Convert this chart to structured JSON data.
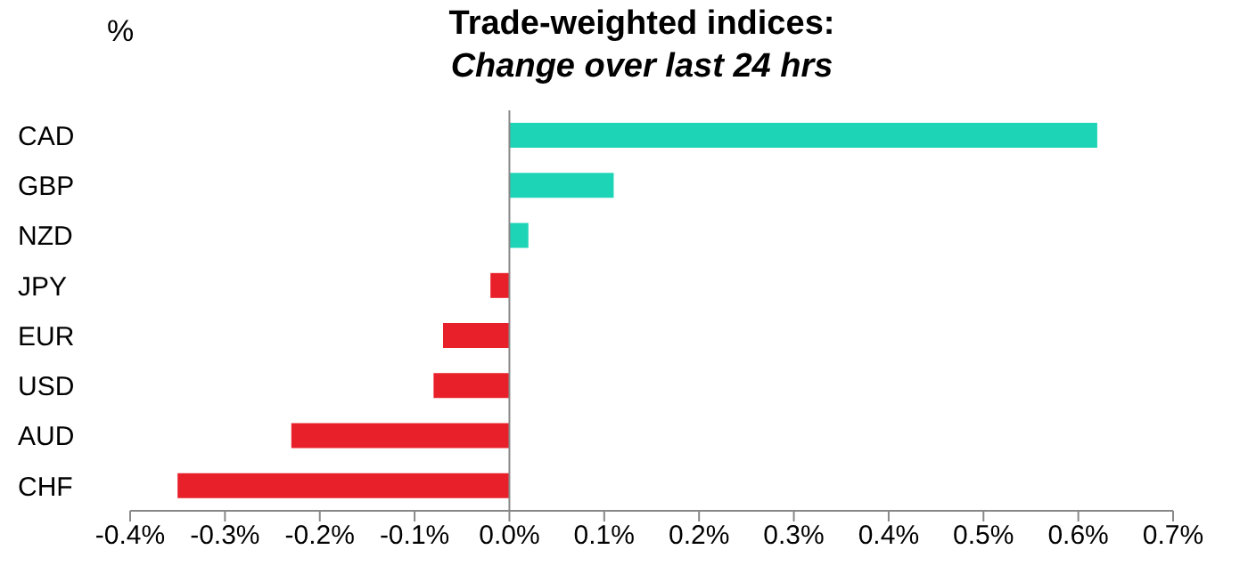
{
  "chart_data": {
    "type": "bar",
    "orientation": "horizontal",
    "title": "Trade-weighted indices:",
    "subtitle": "Change over last 24 hrs",
    "ylabel": "%",
    "categories": [
      "CAD",
      "GBP",
      "NZD",
      "JPY",
      "EUR",
      "USD",
      "AUD",
      "CHF"
    ],
    "values": [
      0.62,
      0.11,
      0.02,
      -0.02,
      -0.07,
      -0.08,
      -0.23,
      -0.35
    ],
    "colors": [
      "#1ed4b6",
      "#1ed4b6",
      "#1ed4b6",
      "#e8202a",
      "#e8202a",
      "#e8202a",
      "#e8202a",
      "#e8202a"
    ],
    "xlim": [
      -0.4,
      0.7
    ],
    "xticks": [
      {
        "value": -0.4,
        "label": "-0.4%"
      },
      {
        "value": -0.3,
        "label": "-0.3%"
      },
      {
        "value": -0.2,
        "label": "-0.2%"
      },
      {
        "value": -0.1,
        "label": "-0.1%"
      },
      {
        "value": 0,
        "label": "0.0%"
      },
      {
        "value": 0.1,
        "label": "0.1%"
      },
      {
        "value": 0.2,
        "label": "0.2%"
      },
      {
        "value": 0.3,
        "label": "0.3%"
      },
      {
        "value": 0.4,
        "label": "0.4%"
      },
      {
        "value": 0.5,
        "label": "0.5%"
      },
      {
        "value": 0.6,
        "label": "0.6%"
      },
      {
        "value": 0.7,
        "label": "0.7%"
      }
    ],
    "legend": false
  }
}
